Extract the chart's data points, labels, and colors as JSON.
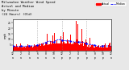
{
  "title": "Milwaukee Weather Wind Speed\nActual and Median\nby Minute\n(24 Hours) (Old)",
  "title_fontsize": 2.8,
  "background_color": "#e8e8e8",
  "plot_bg_color": "#ffffff",
  "bar_color": "#ff0000",
  "median_color": "#0000ff",
  "median_style": "--",
  "median_linewidth": 0.5,
  "median_markersize": 0.8,
  "median_marker": "o",
  "legend_labels": [
    "Actual",
    "Median"
  ],
  "legend_colors": [
    "#ff0000",
    "#0000ff"
  ],
  "ylabel": "mph",
  "ylabel_fontsize": 2.5,
  "tick_fontsize": 2.2,
  "ylim": [
    0,
    28
  ],
  "yticks": [
    5,
    10,
    15,
    20,
    25
  ],
  "n_points": 1440,
  "seed": 42
}
